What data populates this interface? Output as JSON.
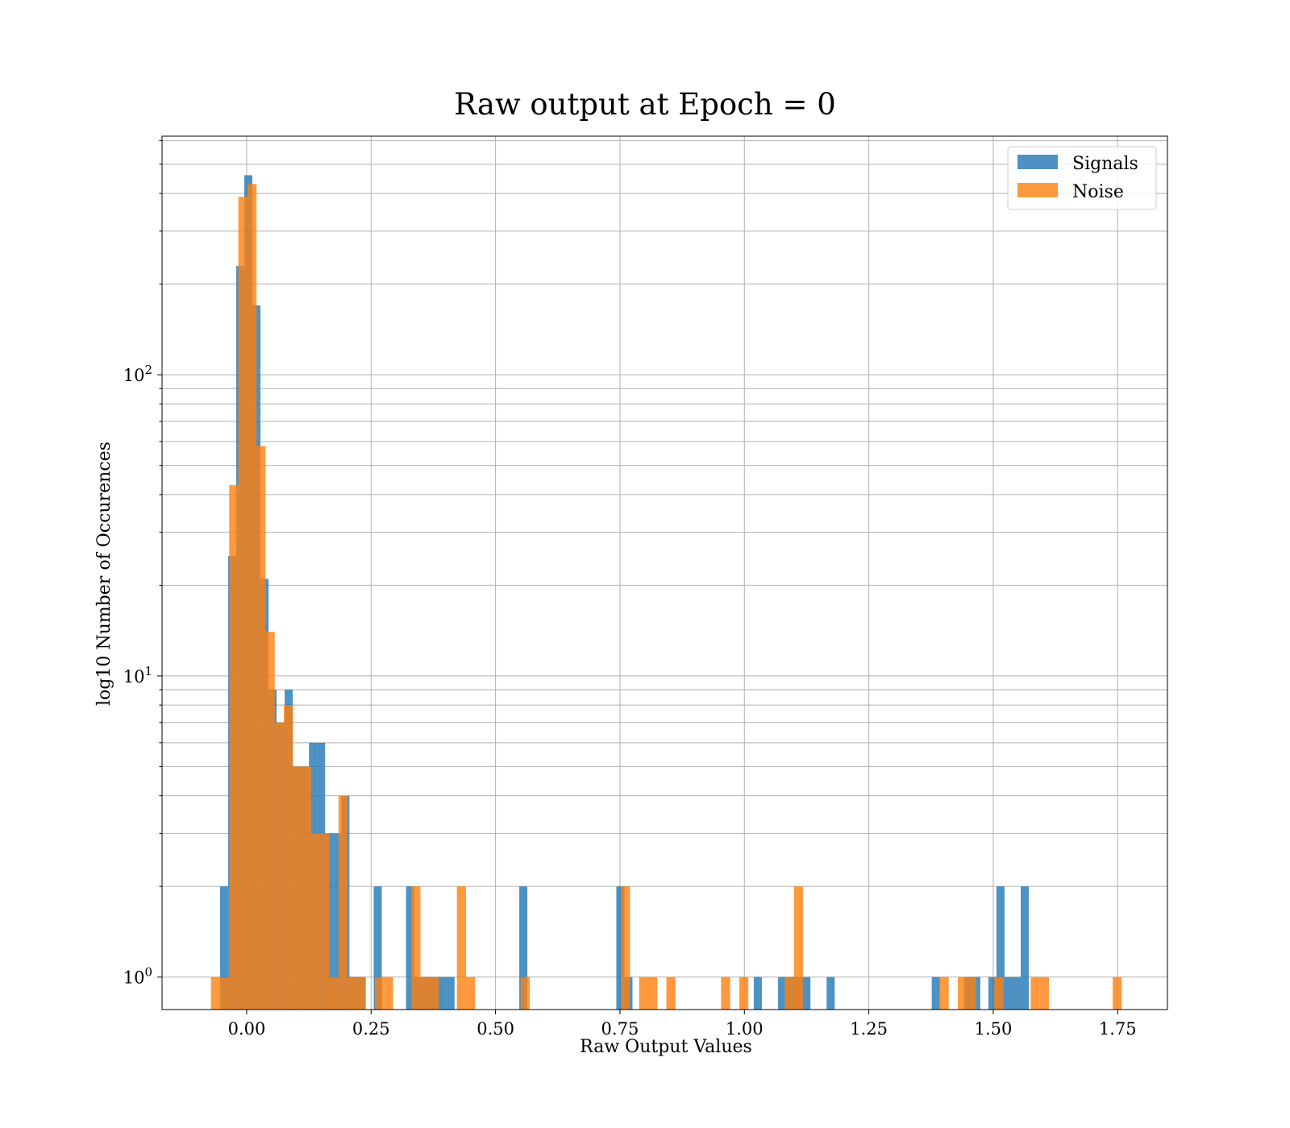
{
  "chart_data": {
    "type": "histogram",
    "title": "Raw output at Epoch = 0",
    "xlabel": "Raw Output Values",
    "ylabel": "log10 Number of Occurences",
    "xlim": [
      -0.17,
      1.85
    ],
    "ylim": [
      0.78,
      620
    ],
    "y_scale": "log",
    "grid": true,
    "legend_position": "top-right",
    "x_ticks": [
      {
        "value": 0.0,
        "label": "0.00"
      },
      {
        "value": 0.25,
        "label": "0.25"
      },
      {
        "value": 0.5,
        "label": "0.50"
      },
      {
        "value": 0.75,
        "label": "0.75"
      },
      {
        "value": 1.0,
        "label": "1.00"
      },
      {
        "value": 1.25,
        "label": "1.25"
      },
      {
        "value": 1.5,
        "label": "1.50"
      },
      {
        "value": 1.75,
        "label": "1.75"
      }
    ],
    "y_ticks": [
      {
        "value": 1,
        "base": "10",
        "exp": "0"
      },
      {
        "value": 10,
        "base": "10",
        "exp": "1"
      },
      {
        "value": 100,
        "base": "10",
        "exp": "2"
      }
    ],
    "series": [
      {
        "name": "Signals",
        "color": "#1f77b4",
        "opacity": 0.8,
        "bin_width": 0.01625,
        "bins": [
          [
            -0.0536,
            2
          ],
          [
            -0.0373,
            25
          ],
          [
            -0.0211,
            230
          ],
          [
            -0.0048,
            460
          ],
          [
            0.0114,
            170
          ],
          [
            0.0277,
            21
          ],
          [
            0.0439,
            9
          ],
          [
            0.0602,
            7
          ],
          [
            0.0764,
            9
          ],
          [
            0.0927,
            5
          ],
          [
            0.1089,
            5
          ],
          [
            0.1252,
            6
          ],
          [
            0.1414,
            6
          ],
          [
            0.1577,
            3
          ],
          [
            0.1739,
            3
          ],
          [
            0.1902,
            4
          ],
          [
            0.2064,
            1
          ],
          [
            0.2227,
            1
          ],
          [
            0.2552,
            2
          ],
          [
            0.3202,
            2
          ],
          [
            0.3364,
            1
          ],
          [
            0.3527,
            1
          ],
          [
            0.3689,
            1
          ],
          [
            0.3852,
            1
          ],
          [
            0.4014,
            1
          ],
          [
            0.5477,
            2
          ],
          [
            0.7427,
            2
          ],
          [
            0.7589,
            1
          ],
          [
            1.0189,
            1
          ],
          [
            1.0677,
            1
          ],
          [
            1.0839,
            1
          ],
          [
            1.1002,
            1
          ],
          [
            1.1164,
            1
          ],
          [
            1.1652,
            1
          ],
          [
            1.3764,
            1
          ],
          [
            1.4414,
            1
          ],
          [
            1.4577,
            1
          ],
          [
            1.4902,
            1
          ],
          [
            1.5064,
            2
          ],
          [
            1.5227,
            1
          ],
          [
            1.5389,
            1
          ],
          [
            1.5552,
            2
          ]
        ]
      },
      {
        "name": "Noise",
        "color": "#ff7f0e",
        "opacity": 0.8,
        "bin_width": 0.0183,
        "bins": [
          [
            -0.0717,
            1
          ],
          [
            -0.0534,
            1
          ],
          [
            -0.0351,
            43
          ],
          [
            -0.0168,
            390
          ],
          [
            0.0015,
            430
          ],
          [
            0.0198,
            58
          ],
          [
            0.0381,
            14
          ],
          [
            0.0564,
            7
          ],
          [
            0.0747,
            8
          ],
          [
            0.093,
            5
          ],
          [
            0.1113,
            5
          ],
          [
            0.1296,
            3
          ],
          [
            0.1479,
            3
          ],
          [
            0.1662,
            1
          ],
          [
            0.1845,
            4
          ],
          [
            0.2028,
            1
          ],
          [
            0.2211,
            1
          ],
          [
            0.2577,
            1
          ],
          [
            0.276,
            1
          ],
          [
            0.3309,
            2
          ],
          [
            0.3492,
            1
          ],
          [
            0.3675,
            1
          ],
          [
            0.4224,
            2
          ],
          [
            0.4407,
            1
          ],
          [
            0.5505,
            1
          ],
          [
            0.7518,
            2
          ],
          [
            0.7884,
            1
          ],
          [
            0.8067,
            1
          ],
          [
            0.8433,
            1
          ],
          [
            0.9531,
            1
          ],
          [
            0.9897,
            1
          ],
          [
            1.0812,
            1
          ],
          [
            1.0995,
            2
          ],
          [
            1.3923,
            1
          ],
          [
            1.4289,
            1
          ],
          [
            1.4472,
            1
          ],
          [
            1.5021,
            1
          ],
          [
            1.5753,
            1
          ],
          [
            1.5936,
            1
          ],
          [
            1.74,
            1
          ]
        ]
      }
    ]
  }
}
